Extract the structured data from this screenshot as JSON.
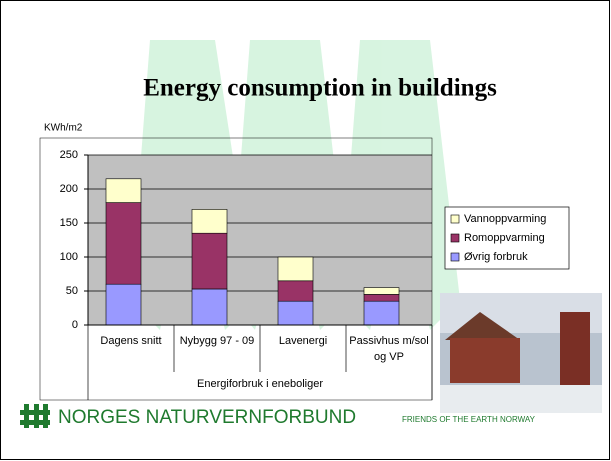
{
  "chart_data": {
    "type": "bar",
    "stacked": true,
    "title": "Energy consumption in buildings",
    "y_label": "KWh/m2",
    "x_label": "Energiforbruk i eneboliger",
    "categories": [
      "Dagens snitt",
      "Nybygg 97 - 09",
      "Lavenergi",
      "Passivhus m/sol og VP"
    ],
    "series": [
      {
        "name": "Øvrig forbruk",
        "color": "#9999ff",
        "values": [
          60,
          53,
          35,
          35
        ]
      },
      {
        "name": "Romoppvarming",
        "color": "#993366",
        "values": [
          120,
          82,
          30,
          10
        ]
      },
      {
        "name": "Vannoppvarming",
        "color": "#ffffcc",
        "values": [
          35,
          35,
          35,
          10
        ]
      }
    ],
    "ylim": [
      0,
      250
    ],
    "yticks": [
      0,
      50,
      100,
      150,
      200,
      250
    ],
    "grid": true
  },
  "footer": {
    "org": "NORGES NATURVERNFORBUND",
    "tagline": "FRIENDS OF THE EARTH NORWAY"
  }
}
